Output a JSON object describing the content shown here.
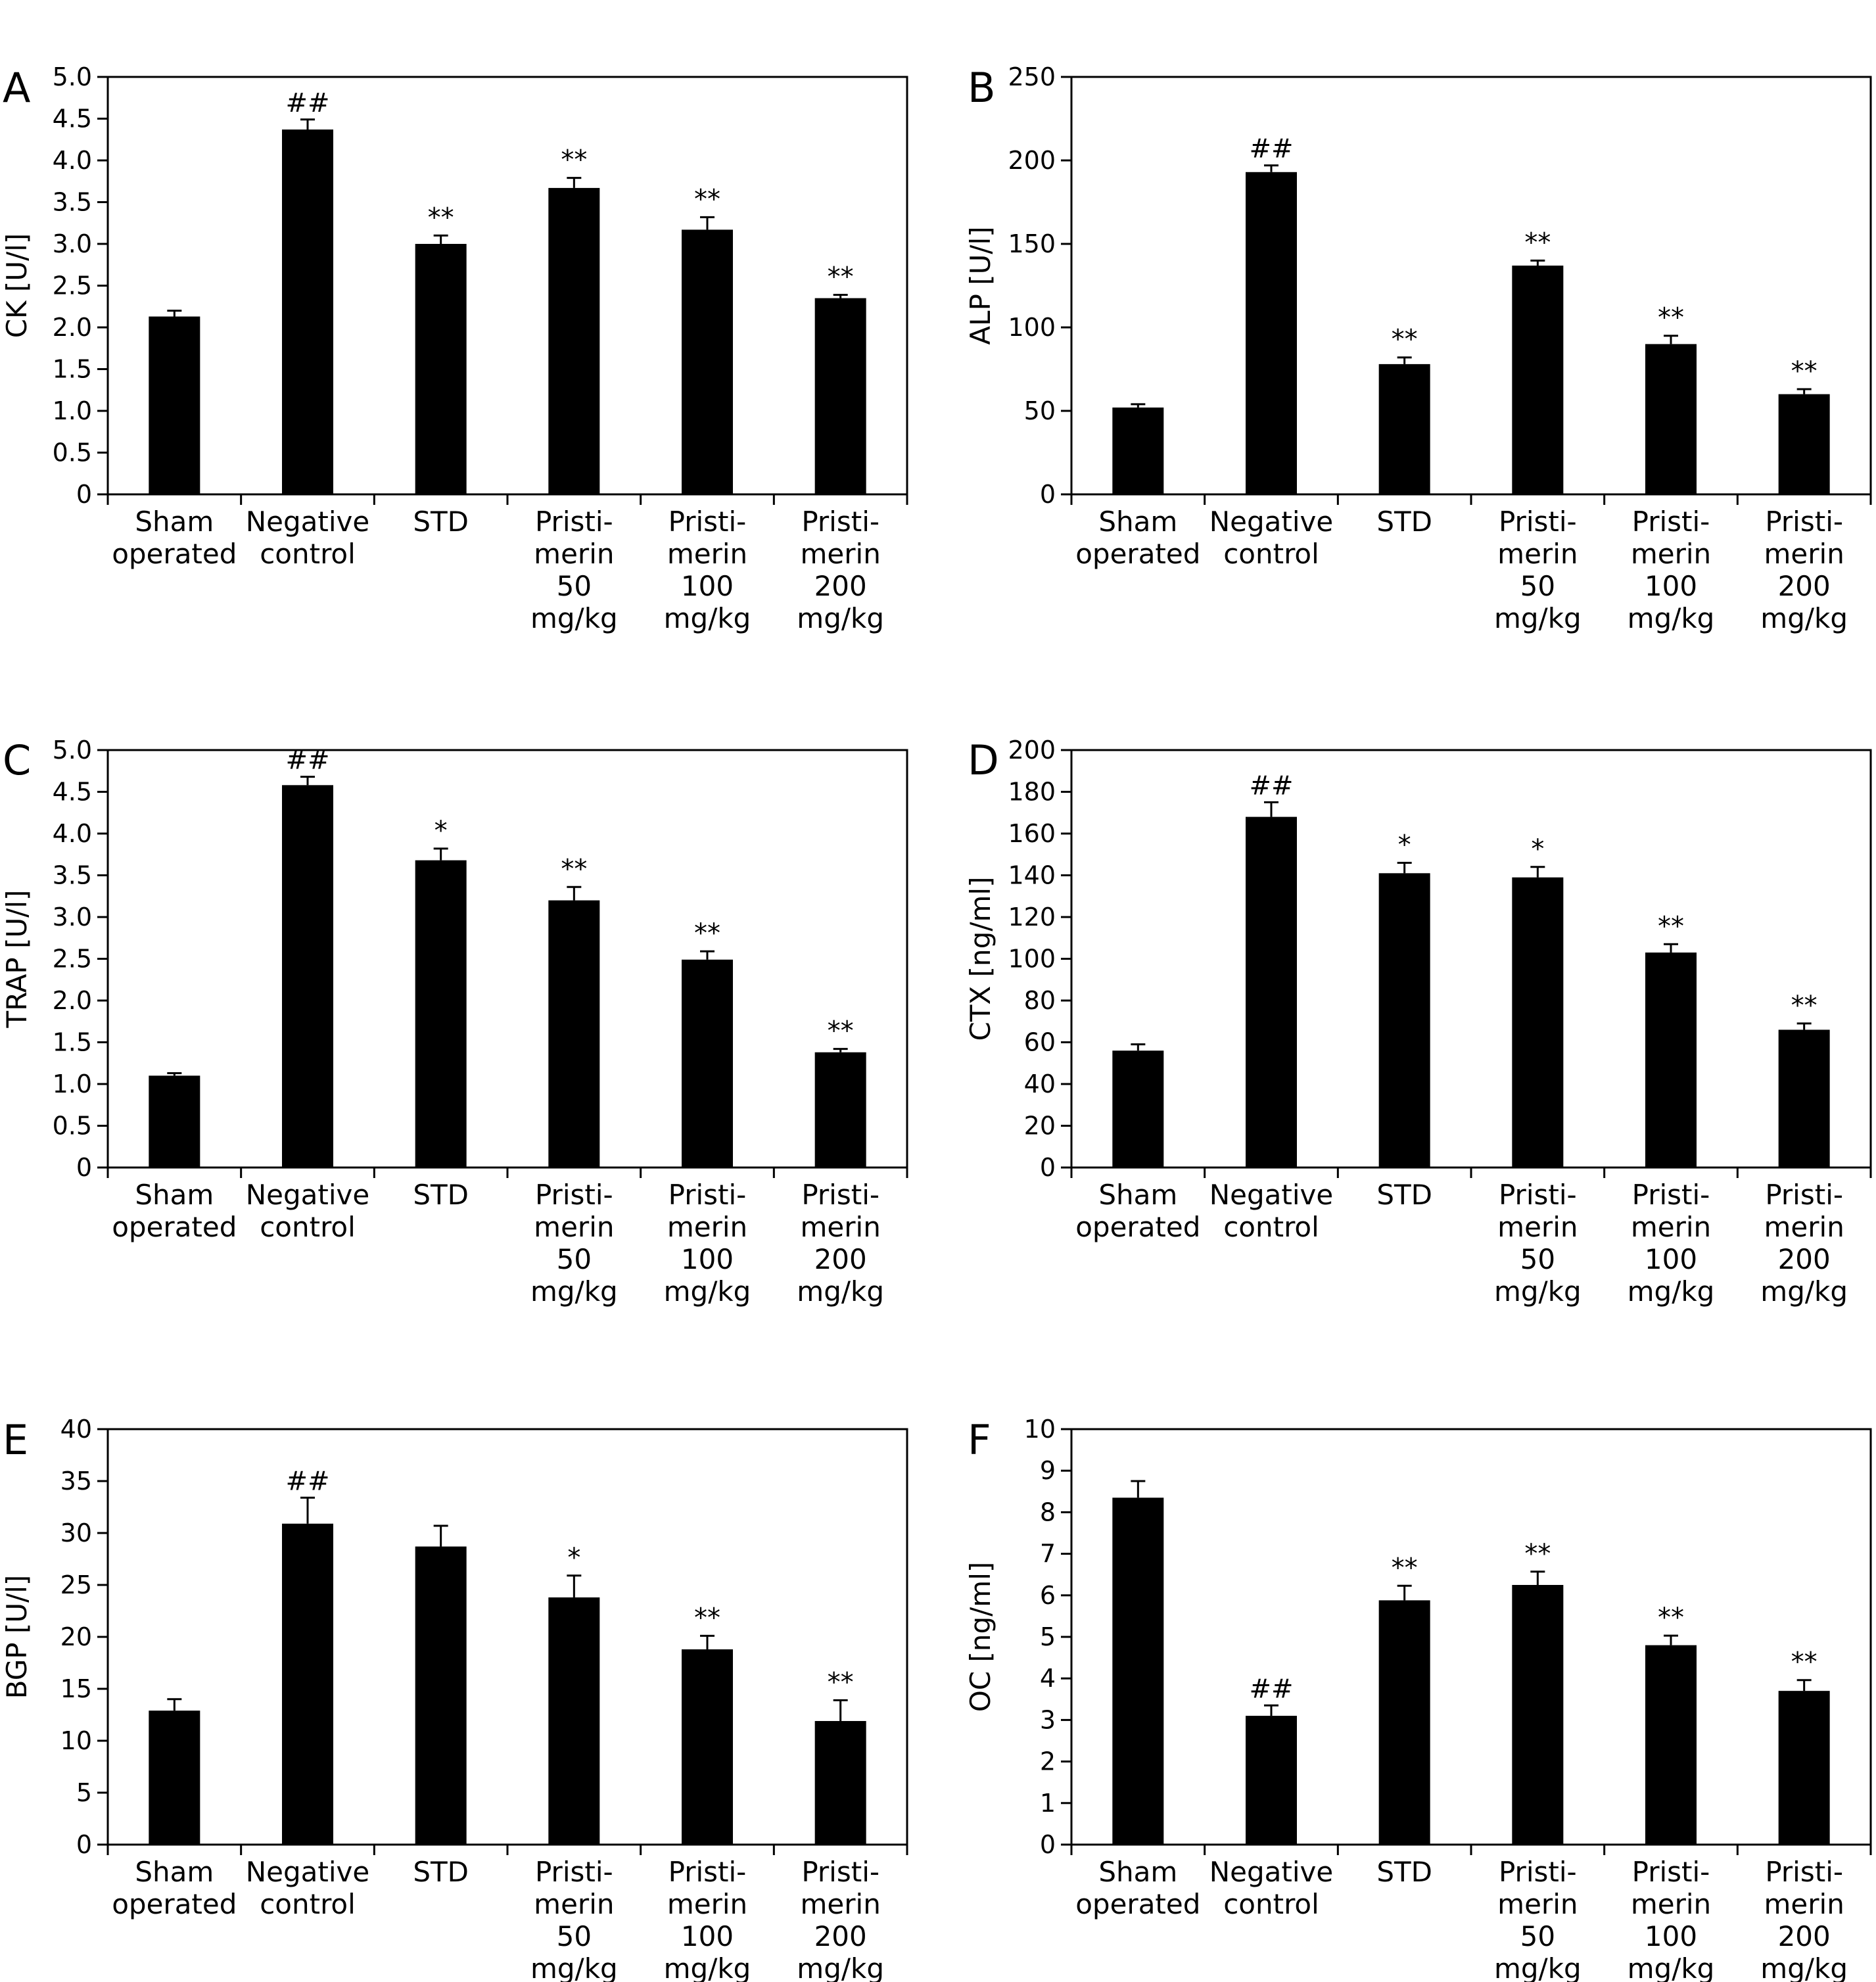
{
  "chart_data": [
    {
      "panel": "A",
      "type": "bar",
      "ylabel": "CK [U/l]",
      "ylim": [
        0,
        5.0
      ],
      "yticks": [
        "0",
        "0.5",
        "1.0",
        "1.5",
        "2.0",
        "2.5",
        "3.0",
        "3.5",
        "4.0",
        "4.5",
        "5.0"
      ],
      "categories": [
        [
          "Sham",
          "operated"
        ],
        [
          "Negative",
          "control"
        ],
        [
          "STD"
        ],
        [
          "Pristi-",
          "merin",
          "50",
          "mg/kg"
        ],
        [
          "Pristi-",
          "merin",
          "100",
          "mg/kg"
        ],
        [
          "Pristi-",
          "merin",
          "200",
          "mg/kg"
        ]
      ],
      "values": [
        2.13,
        4.37,
        3.0,
        3.67,
        3.17,
        2.35
      ],
      "errors": [
        0.07,
        0.12,
        0.1,
        0.12,
        0.15,
        0.04
      ],
      "annotations": [
        "",
        "##",
        "**",
        "**",
        "**",
        "**"
      ]
    },
    {
      "panel": "B",
      "type": "bar",
      "ylabel": "ALP [U/l]",
      "ylim": [
        0,
        250
      ],
      "yticks": [
        "0",
        "50",
        "100",
        "150",
        "200",
        "250"
      ],
      "categories": [
        [
          "Sham",
          "operated"
        ],
        [
          "Negative",
          "control"
        ],
        [
          "STD"
        ],
        [
          "Pristi-",
          "merin",
          "50",
          "mg/kg"
        ],
        [
          "Pristi-",
          "merin",
          "100",
          "mg/kg"
        ],
        [
          "Pristi-",
          "merin",
          "200",
          "mg/kg"
        ]
      ],
      "values": [
        52,
        193,
        78,
        137,
        90,
        60
      ],
      "errors": [
        2,
        4,
        4,
        3,
        5,
        3
      ],
      "annotations": [
        "",
        "##",
        "**",
        "**",
        "**",
        "**"
      ]
    },
    {
      "panel": "C",
      "type": "bar",
      "ylabel": "TRAP [U/l]",
      "ylim": [
        0,
        5.0
      ],
      "yticks": [
        "0",
        "0.5",
        "1.0",
        "1.5",
        "2.0",
        "2.5",
        "3.0",
        "3.5",
        "4.0",
        "4.5",
        "5.0"
      ],
      "categories": [
        [
          "Sham",
          "operated"
        ],
        [
          "Negative",
          "control"
        ],
        [
          "STD"
        ],
        [
          "Pristi-",
          "merin",
          "50",
          "mg/kg"
        ],
        [
          "Pristi-",
          "merin",
          "100",
          "mg/kg"
        ],
        [
          "Pristi-",
          "merin",
          "200",
          "mg/kg"
        ]
      ],
      "values": [
        1.1,
        4.58,
        3.68,
        3.2,
        2.49,
        1.38
      ],
      "errors": [
        0.03,
        0.1,
        0.14,
        0.16,
        0.1,
        0.04
      ],
      "annotations": [
        "",
        "##",
        "*",
        "**",
        "**",
        "**"
      ]
    },
    {
      "panel": "D",
      "type": "bar",
      "ylabel": "CTX [ng/ml]",
      "ylim": [
        0,
        200
      ],
      "yticks": [
        "0",
        "20",
        "40",
        "60",
        "80",
        "100",
        "120",
        "140",
        "160",
        "180",
        "200"
      ],
      "categories": [
        [
          "Sham",
          "operated"
        ],
        [
          "Negative",
          "control"
        ],
        [
          "STD"
        ],
        [
          "Pristi-",
          "merin",
          "50",
          "mg/kg"
        ],
        [
          "Pristi-",
          "merin",
          "100",
          "mg/kg"
        ],
        [
          "Pristi-",
          "merin",
          "200",
          "mg/kg"
        ]
      ],
      "values": [
        56,
        168,
        141,
        139,
        103,
        66
      ],
      "errors": [
        3,
        7,
        5,
        5,
        4,
        3
      ],
      "annotations": [
        "",
        "##",
        "*",
        "*",
        "**",
        "**"
      ]
    },
    {
      "panel": "E",
      "type": "bar",
      "ylabel": "BGP [U/l]",
      "ylim": [
        0,
        40
      ],
      "yticks": [
        "0",
        "5",
        "10",
        "15",
        "20",
        "25",
        "30",
        "35",
        "40"
      ],
      "categories": [
        [
          "Sham",
          "operated"
        ],
        [
          "Negative",
          "control"
        ],
        [
          "STD"
        ],
        [
          "Pristi-",
          "merin",
          "50",
          "mg/kg"
        ],
        [
          "Pristi-",
          "merin",
          "100",
          "mg/kg"
        ],
        [
          "Pristi-",
          "merin",
          "200",
          "mg/kg"
        ]
      ],
      "values": [
        12.9,
        30.9,
        28.7,
        23.8,
        18.8,
        11.9
      ],
      "errors": [
        1.1,
        2.5,
        2.0,
        2.1,
        1.3,
        2.0
      ],
      "annotations": [
        "",
        "##",
        "",
        "*",
        "**",
        "**"
      ]
    },
    {
      "panel": "F",
      "type": "bar",
      "ylabel": "OC [ng/ml]",
      "ylim": [
        0,
        10
      ],
      "yticks": [
        "0",
        "1",
        "2",
        "3",
        "4",
        "5",
        "6",
        "7",
        "8",
        "9",
        "10"
      ],
      "categories": [
        [
          "Sham",
          "operated"
        ],
        [
          "Negative",
          "control"
        ],
        [
          "STD"
        ],
        [
          "Pristi-",
          "merin",
          "50",
          "mg/kg"
        ],
        [
          "Pristi-",
          "merin",
          "100",
          "mg/kg"
        ],
        [
          "Pristi-",
          "merin",
          "200",
          "mg/kg"
        ]
      ],
      "values": [
        8.35,
        3.1,
        5.88,
        6.25,
        4.8,
        3.7
      ],
      "errors": [
        0.4,
        0.25,
        0.35,
        0.32,
        0.23,
        0.26
      ],
      "annotations": [
        "",
        "##",
        "**",
        "**",
        "**",
        "**"
      ]
    }
  ]
}
